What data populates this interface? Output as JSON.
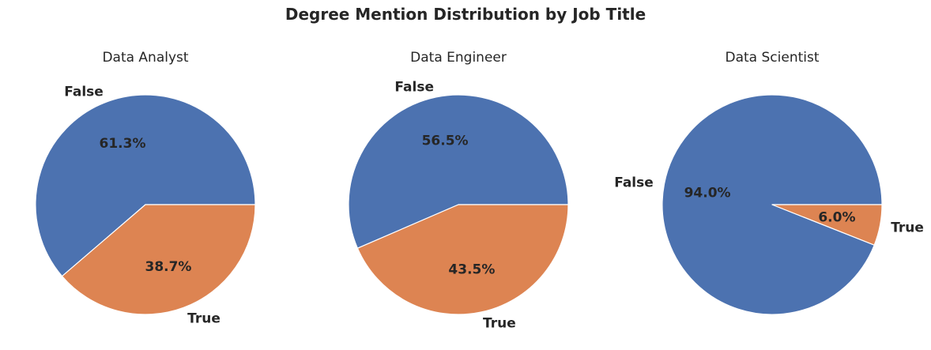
{
  "figure": {
    "title": "Degree Mention Distribution by Job Title"
  },
  "colors": {
    "False": "#4C72B0",
    "True": "#DD8452",
    "edge": "#ffffff"
  },
  "chart_data": [
    {
      "type": "pie",
      "title": "Data Analyst",
      "labels": [
        "False",
        "True"
      ],
      "values": [
        61.3,
        38.7
      ],
      "value_labels": [
        "61.3%",
        "38.7%"
      ]
    },
    {
      "type": "pie",
      "title": "Data Engineer",
      "labels": [
        "False",
        "True"
      ],
      "values": [
        56.5,
        43.5
      ],
      "value_labels": [
        "56.5%",
        "43.5%"
      ]
    },
    {
      "type": "pie",
      "title": "Data Scientist",
      "labels": [
        "False",
        "True"
      ],
      "values": [
        94.0,
        6.0
      ],
      "value_labels": [
        "94.0%",
        "6.0%"
      ]
    }
  ]
}
